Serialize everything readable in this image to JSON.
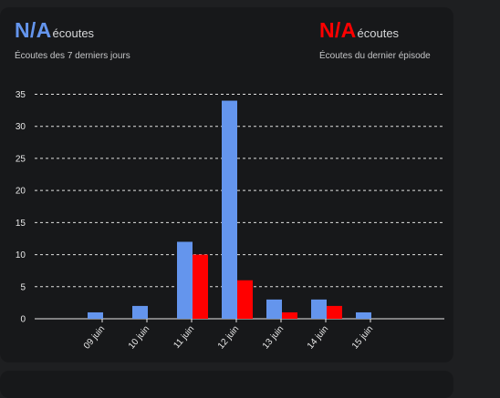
{
  "stats": {
    "left": {
      "value": "N/A",
      "unit": "écoutes",
      "subtitle": "Écoutes des 7 derniers jours",
      "color": "#6495ed"
    },
    "right": {
      "value": "N/A",
      "unit": "écoutes",
      "subtitle": "Écoutes du dernier épisode",
      "color": "#ff0000"
    }
  },
  "chart_data": {
    "type": "bar",
    "categories": [
      "09 juin",
      "10 juin",
      "11 juin",
      "12 juin",
      "13 juin",
      "14 juin",
      "15 juin"
    ],
    "series": [
      {
        "color": "#6495ed",
        "values": [
          1,
          2,
          12,
          34,
          3,
          3,
          1
        ]
      },
      {
        "color": "#ff0000",
        "values": [
          0,
          0,
          10,
          6,
          1,
          2,
          0
        ]
      }
    ],
    "ylim": [
      0,
      35
    ],
    "yticks": [
      0,
      5,
      10,
      15,
      20,
      25,
      30,
      35
    ],
    "grid": true,
    "grid_style": "dashed",
    "xlabel": "",
    "ylabel": ""
  }
}
